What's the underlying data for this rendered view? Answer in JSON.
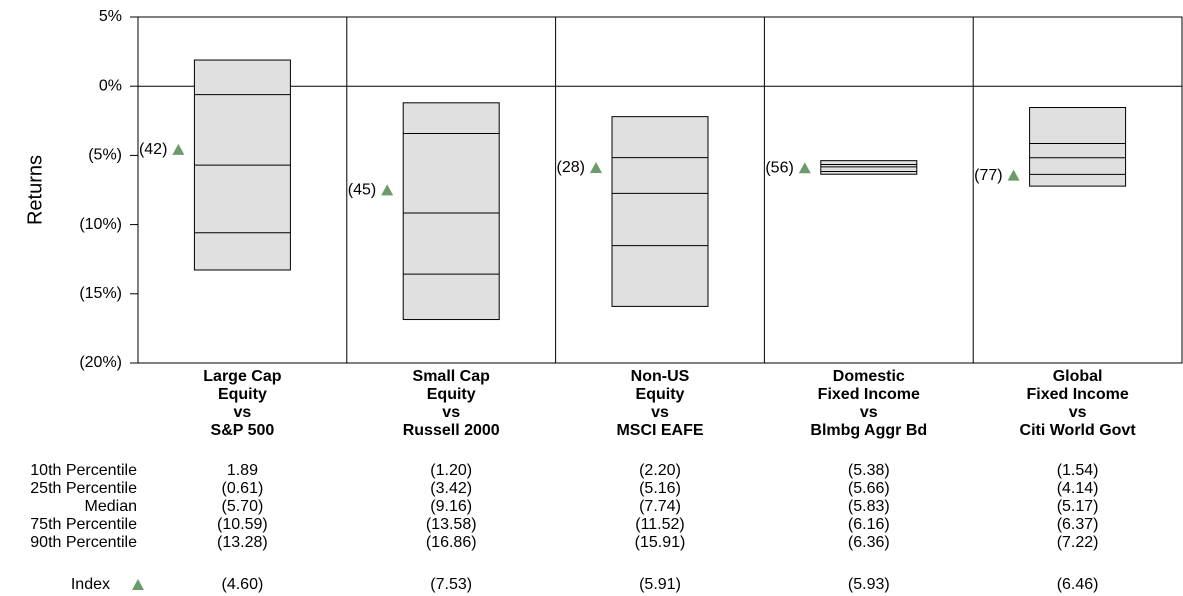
{
  "chart_data": {
    "type": "box",
    "ylabel": "Returns",
    "ylim": [
      -20,
      5
    ],
    "yticks": [
      {
        "value": 5,
        "label": "5%"
      },
      {
        "value": 0,
        "label": "0%"
      },
      {
        "value": -5,
        "label": "(5%)"
      },
      {
        "value": -10,
        "label": "(10%)"
      },
      {
        "value": -15,
        "label": "(15%)"
      },
      {
        "value": -20,
        "label": "(20%)"
      }
    ],
    "categories": [
      [
        "Large Cap",
        "Equity",
        "vs",
        "S&P 500"
      ],
      [
        "Small Cap",
        "Equity",
        "vs",
        "Russell 2000"
      ],
      [
        "Non-US",
        "Equity",
        "vs",
        "MSCI EAFE"
      ],
      [
        "Domestic",
        "Fixed Income",
        "vs",
        "Blmbg Aggr Bd"
      ],
      [
        "Global",
        "Fixed Income",
        "vs",
        "Citi World Govt"
      ]
    ],
    "box_color": "#e0e0e0",
    "negative_color": "#ee0000",
    "series": [
      {
        "name": "10th Percentile",
        "values": [
          1.89,
          -1.2,
          -2.2,
          -5.38,
          -1.54
        ],
        "value_labels": [
          "1.89",
          "(1.20)",
          "(2.20)",
          "(5.38)",
          "(1.54)"
        ]
      },
      {
        "name": "25th Percentile",
        "values": [
          -0.61,
          -3.42,
          -5.16,
          -5.66,
          -4.14
        ],
        "value_labels": [
          "(0.61)",
          "(3.42)",
          "(5.16)",
          "(5.66)",
          "(4.14)"
        ]
      },
      {
        "name": "Median",
        "values": [
          -5.7,
          -9.16,
          -7.74,
          -5.83,
          -5.17
        ],
        "value_labels": [
          "(5.70)",
          "(9.16)",
          "(7.74)",
          "(5.83)",
          "(5.17)"
        ]
      },
      {
        "name": "75th Percentile",
        "values": [
          -10.59,
          -13.58,
          -11.52,
          -6.16,
          -6.37
        ],
        "value_labels": [
          "(10.59)",
          "(13.58)",
          "(11.52)",
          "(6.16)",
          "(6.37)"
        ]
      },
      {
        "name": "90th Percentile",
        "values": [
          -13.28,
          -16.86,
          -15.91,
          -6.36,
          -7.22
        ],
        "value_labels": [
          "(13.28)",
          "(16.86)",
          "(15.91)",
          "(6.36)",
          "(7.22)"
        ]
      }
    ],
    "index": {
      "name": "Index",
      "color": "#6b9a6b",
      "values": [
        -4.6,
        -7.53,
        -5.91,
        -5.93,
        -6.46
      ],
      "value_labels": [
        "(4.60)",
        "(7.53)",
        "(5.91)",
        "(5.93)",
        "(6.46)"
      ],
      "ranks": [
        42,
        45,
        28,
        56,
        77
      ],
      "rank_labels": [
        "(42)",
        "(45)",
        "(28)",
        "(56)",
        "(77)"
      ]
    }
  }
}
